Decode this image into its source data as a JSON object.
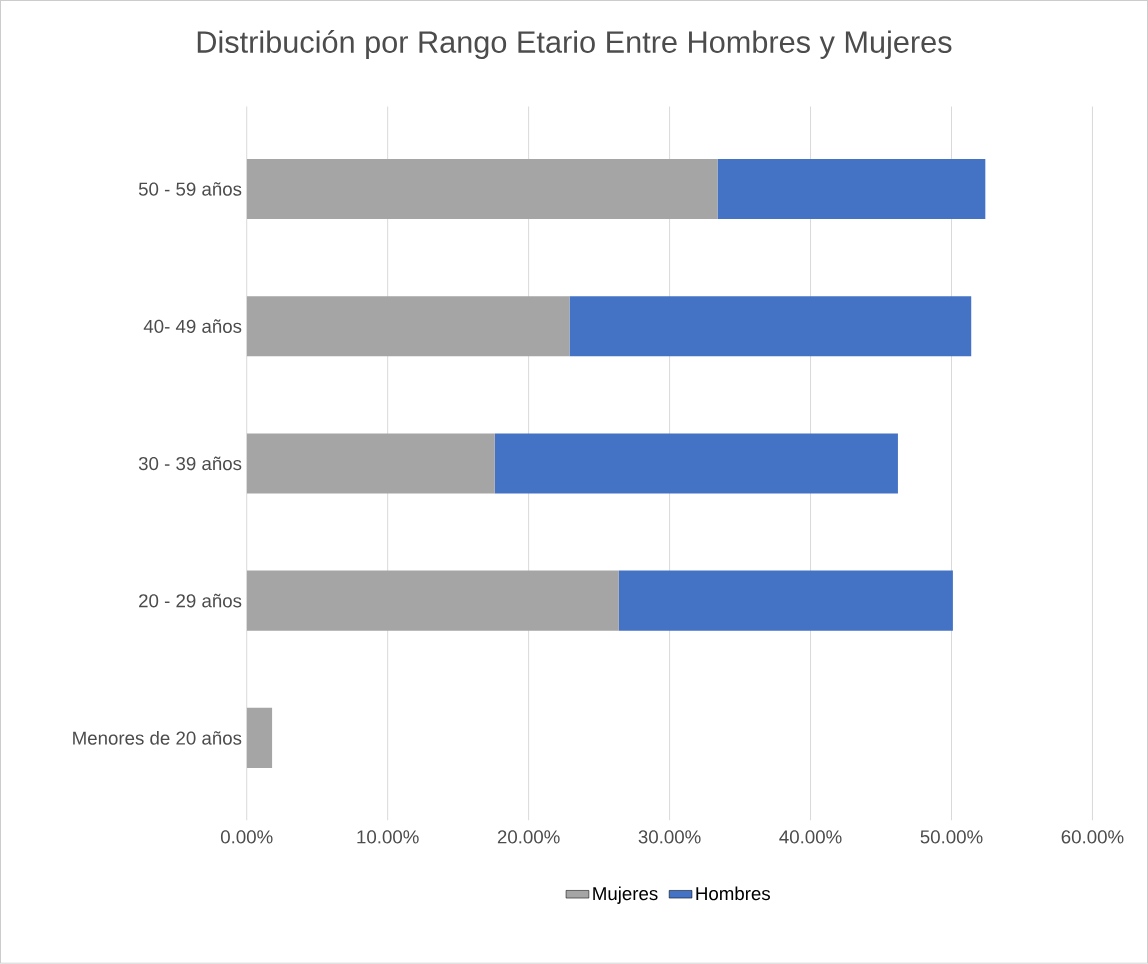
{
  "chart_data": {
    "type": "bar",
    "orientation": "horizontal",
    "stacked": true,
    "title": "Distribución por Rango Etario Entre Hombres y Mujeres",
    "categories": [
      "50 - 59 años",
      "40- 49 años",
      "30 - 39 años",
      "20 - 29 años",
      "Menores de 20 años"
    ],
    "series": [
      {
        "name": "Mujeres",
        "color": "#a5a5a5",
        "values": [
          33.4,
          22.9,
          17.6,
          26.4,
          1.8
        ]
      },
      {
        "name": "Hombres",
        "color": "#4472c4",
        "values": [
          19.0,
          28.5,
          28.6,
          23.7,
          null
        ]
      }
    ],
    "xlim": [
      0,
      60
    ],
    "xticks": [
      {
        "value": 0,
        "label": "0.00%"
      },
      {
        "value": 10,
        "label": "10.00%"
      },
      {
        "value": 20,
        "label": "20.00%"
      },
      {
        "value": 30,
        "label": "30.00%"
      },
      {
        "value": 40,
        "label": "40.00%"
      },
      {
        "value": 50,
        "label": "50.00%"
      },
      {
        "value": 60,
        "label": "60.00%"
      }
    ],
    "grid": "x",
    "legend": "bottom"
  }
}
